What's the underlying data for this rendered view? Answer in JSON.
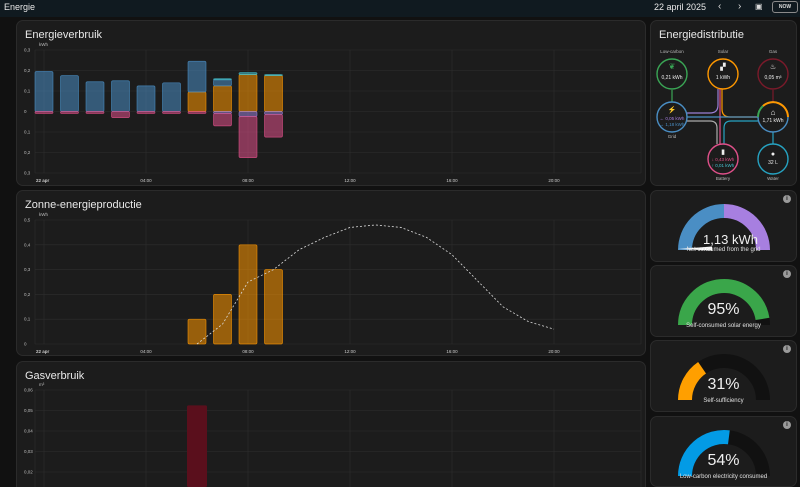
{
  "header": {
    "title": "Energie",
    "date": "22 april 2025",
    "prev_icon": "chevron-left-icon",
    "next_icon": "chevron-right-icon",
    "calendar_icon": "calendar-icon",
    "now_label": "NOW"
  },
  "colors": {
    "grid": "#4a8ec4",
    "solar": "#ff9800",
    "battery_in": "#e0508a",
    "battery_out": "#47c7d6",
    "to_grid": "#9a7fd6",
    "gas": "#6b0f1f",
    "lowcarbon": "#3aa655",
    "water": "#26a3c2"
  },
  "charts": [
    {
      "title": "Energieverbruik",
      "unit": "kWh",
      "type": "bar",
      "stacked": true,
      "x_ticks": [
        "22 apr",
        "04:00",
        "08:00",
        "12:00",
        "16:00",
        "20:00"
      ],
      "y_ticks": [
        "0,3",
        "0,2",
        "0,1",
        "0",
        "0,1",
        "0,2",
        "0,3"
      ],
      "ylim": [
        -0.3,
        0.3
      ],
      "chart_data": {
        "type": "bar",
        "hours": [
          0,
          1,
          2,
          3,
          4,
          5,
          6,
          7,
          8,
          9
        ],
        "series": [
          {
            "key": "solar",
            "values": [
              0,
              0,
              0,
              0,
              0,
              0,
              0.095,
              0.125,
              0.18,
              0.175
            ]
          },
          {
            "key": "grid",
            "values": [
              0.195,
              0.175,
              0.145,
              0.15,
              0.125,
              0.14,
              0.15,
              0.03,
              0,
              0
            ]
          },
          {
            "key": "battery_out",
            "values": [
              0,
              0,
              0,
              0,
              0,
              0,
              0,
              0.005,
              0.01,
              0.005
            ]
          },
          {
            "key": "to_grid",
            "values": [
              0,
              0,
              0,
              0,
              0,
              0,
              0,
              -0.01,
              -0.025,
              -0.015
            ]
          },
          {
            "key": "battery_in",
            "values": [
              -0.01,
              -0.01,
              -0.01,
              -0.03,
              -0.01,
              -0.01,
              -0.01,
              -0.06,
              -0.2,
              -0.11
            ]
          }
        ]
      }
    },
    {
      "title": "Zonne-energieproductie",
      "unit": "kWh",
      "type": "bar",
      "x_ticks": [
        "22 apr",
        "04:00",
        "08:00",
        "12:00",
        "16:00",
        "20:00"
      ],
      "y_ticks": [
        "0,5",
        "0,4",
        "0,3",
        "0,2",
        "0,1",
        "0"
      ],
      "ylim": [
        0,
        0.5
      ],
      "chart_data": {
        "type": "bar",
        "hours": [
          6,
          7,
          8,
          9
        ],
        "values": [
          0.1,
          0.2,
          0.4,
          0.3
        ],
        "forecast": {
          "hours": [
            6,
            7,
            8,
            9,
            10,
            11,
            12,
            13,
            14,
            15,
            16,
            17,
            18,
            19,
            20
          ],
          "values": [
            0,
            0.08,
            0.25,
            0.3,
            0.38,
            0.43,
            0.47,
            0.48,
            0.47,
            0.43,
            0.36,
            0.255,
            0.15,
            0.09,
            0.06
          ]
        }
      }
    },
    {
      "title": "Gasverbruik",
      "unit": "m³",
      "type": "bar",
      "y_ticks": [
        "0,06",
        "0,05",
        "0,04",
        "0,03",
        "0,02"
      ],
      "ylim": [
        0,
        0.06
      ],
      "chart_data": {
        "type": "bar",
        "hours": [
          6
        ],
        "values": [
          0.0525
        ]
      }
    }
  ],
  "distribution": {
    "title": "Energiedistributie",
    "nodes": {
      "lowcarbon": {
        "label": "Low-carbon",
        "value": "0,21 kWh",
        "icon": "leaf-icon"
      },
      "solar": {
        "label": "Solar",
        "value": "1 kWh",
        "icon": "solar-panel-icon"
      },
      "gas": {
        "label": "Gas",
        "value": "0,05 m³",
        "icon": "fire-icon"
      },
      "grid": {
        "label": "Grid",
        "value_out": "← 0,05 kWh",
        "value_in": "→ 1,18 kWh",
        "icon": "transmission-tower-icon"
      },
      "home": {
        "value": "1,71 kWh",
        "icon": "home-icon"
      },
      "battery": {
        "label": "Battery",
        "value_in": "↓ 0,43 kWh",
        "value_out": "↑ 0,01 kWh",
        "icon": "battery-icon"
      },
      "water": {
        "label": "Water",
        "value": "32 L",
        "icon": "water-drop-icon"
      }
    }
  },
  "gauges": [
    {
      "value": "1,13 kWh",
      "label": "Net consumed from the grid",
      "type": "split",
      "colors": [
        "#4a8ec4",
        "#a77fe0"
      ]
    },
    {
      "value": "95%",
      "label": "Self-consumed solar energy",
      "percent": 95,
      "color": "#3aa64a"
    },
    {
      "value": "31%",
      "label": "Self-sufficiency",
      "percent": 31,
      "color": "#ff9f00"
    },
    {
      "value": "54%",
      "label": "Low-carbon electricity consumed",
      "percent": 54,
      "color": "#039be5"
    }
  ]
}
